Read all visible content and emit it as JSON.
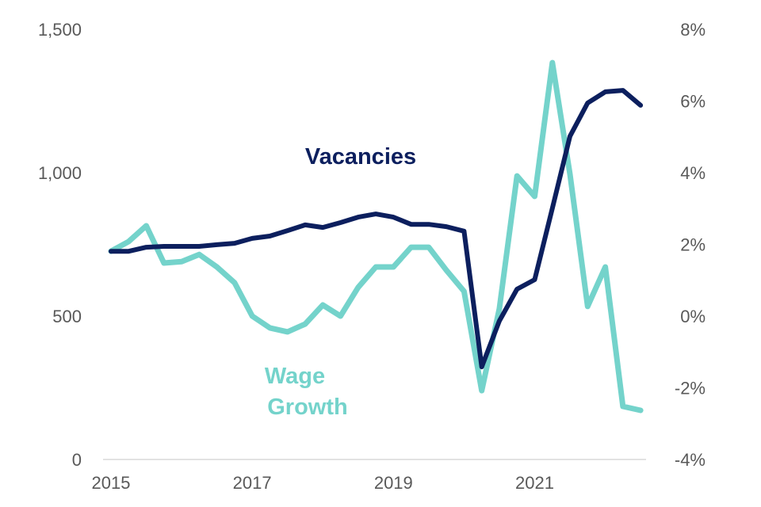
{
  "chart_data": {
    "type": "line",
    "title": "",
    "x": [
      "2015Q1",
      "2015Q2",
      "2015Q3",
      "2015Q4",
      "2016Q1",
      "2016Q2",
      "2016Q3",
      "2016Q4",
      "2017Q1",
      "2017Q2",
      "2017Q3",
      "2017Q4",
      "2018Q1",
      "2018Q2",
      "2018Q3",
      "2018Q4",
      "2019Q1",
      "2019Q2",
      "2019Q3",
      "2019Q4",
      "2020Q1",
      "2020Q2",
      "2020Q3",
      "2020Q4",
      "2021Q1",
      "2021Q2",
      "2021Q3",
      "2021Q4",
      "2022Q1",
      "2022Q2",
      "2022Q3"
    ],
    "x_tick_labels": [
      "2015",
      "2017",
      "2019",
      "2021"
    ],
    "y_left": {
      "ylim": [
        0,
        1500
      ],
      "tick_labels": [
        "0",
        "500",
        "1,000",
        "1,500"
      ],
      "ticks": [
        0,
        500,
        1000,
        1500
      ]
    },
    "y_right": {
      "ylim": [
        -4,
        8
      ],
      "tick_labels": [
        "-4%",
        "-2%",
        "0%",
        "2%",
        "4%",
        "6%",
        "8%"
      ],
      "ticks": [
        -4,
        -2,
        0,
        2,
        4,
        6,
        8
      ]
    },
    "grid": false,
    "series": [
      {
        "name": "Vacancies",
        "label_lines": [
          "Vacancies"
        ],
        "axis": "left",
        "color": "#0c1f5e",
        "values": [
          726,
          726,
          740,
          743,
          743,
          743,
          749,
          754,
          771,
          779,
          798,
          818,
          809,
          826,
          845,
          856,
          845,
          820,
          820,
          812,
          796,
          323,
          483,
          594,
          627,
          876,
          1127,
          1243,
          1282,
          1287,
          1235
        ]
      },
      {
        "name": "Wage Growth",
        "label_lines": [
          "Wage",
          "Growth"
        ],
        "axis": "right",
        "color": "#74d3cb",
        "values": [
          1.81,
          2.08,
          2.52,
          1.48,
          1.52,
          1.72,
          1.37,
          0.93,
          0.0,
          -0.33,
          -0.44,
          -0.22,
          0.31,
          0.0,
          0.8,
          1.37,
          1.37,
          1.92,
          1.92,
          1.28,
          0.69,
          -2.08,
          0.2,
          3.91,
          3.34,
          7.07,
          3.96,
          0.27,
          1.37,
          -2.52,
          -2.63
        ]
      }
    ]
  }
}
